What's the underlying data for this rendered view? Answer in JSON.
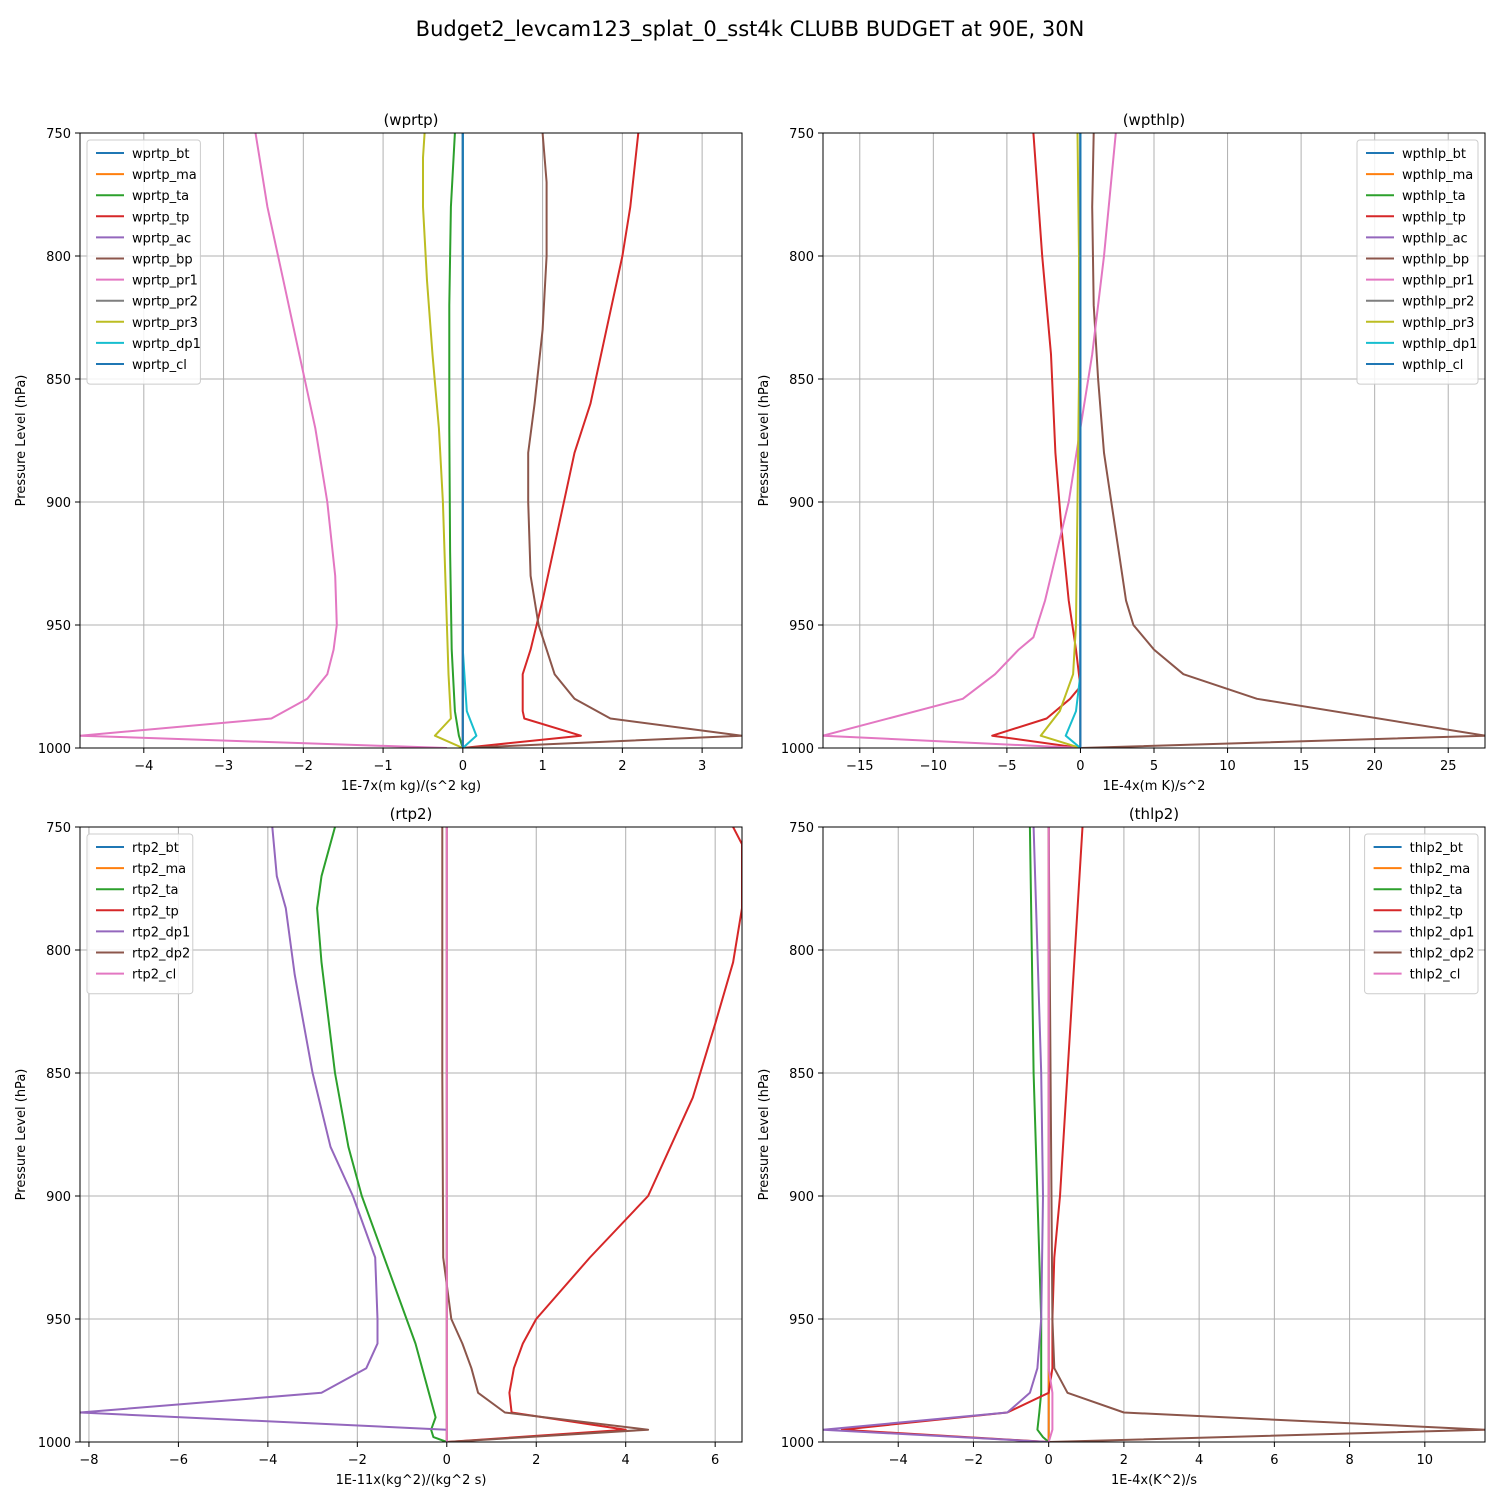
{
  "figure": {
    "suptitle": "Budget2_levcam123_splat_0_sst4k CLUBB BUDGET at 90E, 30N"
  },
  "colors": {
    "C0": "#1f77b4",
    "C1": "#ff7f0e",
    "C2": "#2ca02c",
    "C3": "#d62728",
    "C4": "#9467bd",
    "C5": "#8c564b",
    "C6": "#e377c2",
    "C7": "#7f7f7f",
    "C8": "#bcbd22",
    "C9": "#17becf",
    "grid": "#b0b0b0",
    "axis": "#000000"
  },
  "chart_data": [
    {
      "type": "line",
      "title": "(wprtp)",
      "xlabel": "1E-7x(m kg)/(s^2 kg)",
      "ylabel": "Pressure Level (hPa)",
      "xlim": [
        -4.8,
        3.5
      ],
      "ylim": [
        1000,
        750
      ],
      "xticks": [
        -4,
        -3,
        -2,
        -1,
        0,
        1,
        2,
        3
      ],
      "xtick_labels": [
        "−4",
        "−3",
        "−2",
        "−1",
        "0",
        "1",
        "2",
        "3"
      ],
      "yticks": [
        750,
        800,
        850,
        900,
        950,
        1000
      ],
      "ytick_labels": [
        "750",
        "800",
        "850",
        "900",
        "950",
        "1000"
      ],
      "grid": true,
      "legend_position": "upper-left",
      "series": [
        {
          "name": "wprtp_bt",
          "color": "#1f77b4",
          "x": [
            0,
            0
          ],
          "y": [
            750,
            1000
          ]
        },
        {
          "name": "wprtp_ma",
          "color": "#ff7f0e",
          "x": [
            0,
            0
          ],
          "y": [
            750,
            1000
          ]
        },
        {
          "name": "wprtp_ta",
          "color": "#2ca02c",
          "x": [
            -0.1,
            -0.15,
            -0.17,
            -0.17,
            -0.16,
            -0.14,
            -0.1,
            -0.05,
            0
          ],
          "y": [
            750,
            780,
            820,
            870,
            920,
            960,
            985,
            995,
            1000
          ]
        },
        {
          "name": "wprtp_tp",
          "color": "#d62728",
          "x": [
            2.2,
            2.1,
            2.0,
            1.8,
            1.6,
            1.4,
            1.2,
            1.0,
            0.85,
            0.75,
            0.75,
            0.77,
            1.48,
            0
          ],
          "y": [
            750,
            780,
            800,
            830,
            860,
            880,
            910,
            940,
            960,
            970,
            985,
            988,
            995,
            1000
          ]
        },
        {
          "name": "wprtp_ac",
          "color": "#9467bd",
          "x": [
            0,
            0
          ],
          "y": [
            750,
            1000
          ]
        },
        {
          "name": "wprtp_bp",
          "color": "#8c564b",
          "x": [
            1.0,
            1.05,
            1.05,
            1.0,
            0.9,
            0.82,
            0.82,
            0.85,
            0.95,
            1.05,
            1.15,
            1.4,
            1.85,
            3.5,
            0
          ],
          "y": [
            750,
            770,
            800,
            830,
            860,
            880,
            900,
            930,
            950,
            960,
            970,
            980,
            988,
            995,
            1000
          ]
        },
        {
          "name": "wprtp_pr1",
          "color": "#e377c2",
          "x": [
            -2.6,
            -2.55,
            -2.45,
            -2.25,
            -2.05,
            -1.85,
            -1.7,
            -1.6,
            -1.58,
            -1.62,
            -1.7,
            -1.95,
            -2.4,
            -4.8,
            -0.2
          ],
          "y": [
            750,
            760,
            780,
            810,
            840,
            870,
            900,
            930,
            950,
            960,
            970,
            980,
            988,
            995,
            1000
          ]
        },
        {
          "name": "wprtp_pr2",
          "color": "#7f7f7f",
          "x": [
            0,
            0
          ],
          "y": [
            750,
            1000
          ]
        },
        {
          "name": "wprtp_pr3",
          "color": "#bcbd22",
          "x": [
            -0.48,
            -0.5,
            -0.5,
            -0.45,
            -0.38,
            -0.3,
            -0.25,
            -0.22,
            -0.2,
            -0.18,
            -0.15,
            -0.35,
            0
          ],
          "y": [
            750,
            760,
            780,
            810,
            840,
            870,
            900,
            930,
            950,
            970,
            988,
            995,
            1000
          ]
        },
        {
          "name": "wprtp_dp1",
          "color": "#17becf",
          "x": [
            0,
            0,
            0.02,
            0.05,
            0.17,
            0
          ],
          "y": [
            750,
            960,
            970,
            985,
            995,
            1000
          ]
        },
        {
          "name": "wprtp_cl",
          "color": "#1f77b4",
          "x": [
            0,
            0
          ],
          "y": [
            750,
            1000
          ]
        }
      ]
    },
    {
      "type": "line",
      "title": "(wpthlp)",
      "xlabel": "1E-4x(m K)/s^2",
      "ylabel": "Pressure Level (hPa)",
      "xlim": [
        -17.5,
        27.5
      ],
      "ylim": [
        1000,
        750
      ],
      "xticks": [
        -15,
        -10,
        -5,
        0,
        5,
        10,
        15,
        20,
        25
      ],
      "xtick_labels": [
        "−15",
        "−10",
        "−5",
        "0",
        "5",
        "10",
        "15",
        "20",
        "25"
      ],
      "yticks": [
        750,
        800,
        850,
        900,
        950,
        1000
      ],
      "ytick_labels": [
        "750",
        "800",
        "850",
        "900",
        "950",
        "1000"
      ],
      "grid": true,
      "legend_position": "upper-right",
      "series": [
        {
          "name": "wpthlp_bt",
          "color": "#1f77b4",
          "x": [
            0,
            0
          ],
          "y": [
            750,
            1000
          ]
        },
        {
          "name": "wpthlp_ma",
          "color": "#ff7f0e",
          "x": [
            0,
            0
          ],
          "y": [
            750,
            1000
          ]
        },
        {
          "name": "wpthlp_ta",
          "color": "#2ca02c",
          "x": [
            0,
            0
          ],
          "y": [
            750,
            1000
          ]
        },
        {
          "name": "wpthlp_tp",
          "color": "#d62728",
          "x": [
            -3.2,
            -2.6,
            -2.0,
            -1.7,
            -1.3,
            -0.8,
            -0.3,
            0,
            -0.7,
            -2.3,
            -6.0,
            0
          ],
          "y": [
            750,
            800,
            840,
            880,
            910,
            940,
            960,
            975,
            980,
            988,
            995,
            1000
          ]
        },
        {
          "name": "wpthlp_ac",
          "color": "#9467bd",
          "x": [
            0,
            0
          ],
          "y": [
            750,
            1000
          ]
        },
        {
          "name": "wpthlp_bp",
          "color": "#8c564b",
          "x": [
            0.9,
            0.8,
            0.9,
            1.2,
            1.6,
            2.1,
            2.6,
            3.1,
            3.6,
            5.0,
            7.0,
            12.0,
            27.5,
            0
          ],
          "y": [
            750,
            780,
            820,
            850,
            880,
            900,
            920,
            940,
            950,
            960,
            970,
            980,
            995,
            1000
          ]
        },
        {
          "name": "wpthlp_pr1",
          "color": "#e377c2",
          "x": [
            2.4,
            1.6,
            0.8,
            0.0,
            -0.8,
            -1.6,
            -2.4,
            -3.2,
            -4.2,
            -5.8,
            -8.0,
            -17.5,
            0
          ],
          "y": [
            750,
            800,
            840,
            870,
            900,
            920,
            940,
            955,
            960,
            970,
            980,
            995,
            1000
          ]
        },
        {
          "name": "wpthlp_pr2",
          "color": "#7f7f7f",
          "x": [
            0,
            0
          ],
          "y": [
            750,
            1000
          ]
        },
        {
          "name": "wpthlp_pr3",
          "color": "#bcbd22",
          "x": [
            -0.2,
            -0.1,
            -0.1,
            -0.2,
            -0.3,
            -0.5,
            -1.4,
            -2.7,
            0
          ],
          "y": [
            750,
            800,
            850,
            900,
            950,
            970,
            985,
            995,
            1000
          ]
        },
        {
          "name": "wpthlp_dp1",
          "color": "#17becf",
          "x": [
            0,
            0,
            -0.3,
            -1.0,
            0
          ],
          "y": [
            750,
            970,
            985,
            995,
            1000
          ]
        },
        {
          "name": "wpthlp_cl",
          "color": "#1f77b4",
          "x": [
            0,
            0
          ],
          "y": [
            750,
            1000
          ]
        }
      ]
    },
    {
      "type": "line",
      "title": "(rtp2)",
      "xlabel": "1E-11x(kg^2)/(kg^2 s)",
      "ylabel": "Pressure Level (hPa)",
      "xlim": [
        -8.2,
        6.6
      ],
      "ylim": [
        1000,
        750
      ],
      "xticks": [
        -8,
        -6,
        -4,
        -2,
        0,
        2,
        4,
        6
      ],
      "xtick_labels": [
        "−8",
        "−6",
        "−4",
        "−2",
        "0",
        "2",
        "4",
        "6"
      ],
      "yticks": [
        750,
        800,
        850,
        900,
        950,
        1000
      ],
      "ytick_labels": [
        "750",
        "800",
        "850",
        "900",
        "950",
        "1000"
      ],
      "grid": true,
      "legend_position": "upper-left",
      "series": [
        {
          "name": "rtp2_bt",
          "color": "#1f77b4",
          "x": [
            0,
            0
          ],
          "y": [
            750,
            1000
          ]
        },
        {
          "name": "rtp2_ma",
          "color": "#ff7f0e",
          "x": [
            0,
            0
          ],
          "y": [
            750,
            1000
          ]
        },
        {
          "name": "rtp2_ta",
          "color": "#2ca02c",
          "x": [
            -2.5,
            -2.8,
            -2.9,
            -2.8,
            -2.5,
            -2.2,
            -1.9,
            -1.5,
            -1.1,
            -0.7,
            -0.4,
            -0.25,
            -0.35,
            -0.3,
            0
          ],
          "y": [
            750,
            770,
            783,
            805,
            850,
            880,
            900,
            920,
            940,
            960,
            980,
            990,
            995,
            998,
            1000
          ]
        },
        {
          "name": "rtp2_tp",
          "color": "#d62728",
          "x": [
            6.4,
            6.6,
            6.6,
            6.4,
            6.0,
            5.5,
            4.5,
            3.2,
            2.0,
            1.7,
            1.5,
            1.4,
            1.45,
            4.0,
            0
          ],
          "y": [
            750,
            757,
            783,
            805,
            830,
            860,
            900,
            925,
            950,
            960,
            970,
            980,
            988,
            995,
            1000
          ]
        },
        {
          "name": "rtp2_dp1",
          "color": "#9467bd",
          "x": [
            -3.9,
            -3.8,
            -3.6,
            -3.4,
            -3.0,
            -2.6,
            -2.1,
            -1.6,
            -1.55,
            -1.55,
            -1.8,
            -2.8,
            -8.2,
            0
          ],
          "y": [
            750,
            770,
            783,
            810,
            850,
            880,
            900,
            925,
            950,
            960,
            970,
            980,
            988,
            995
          ]
        },
        {
          "name": "rtp2_dp2",
          "color": "#8c564b",
          "x": [
            -0.1,
            -0.1,
            -0.08,
            0.1,
            0.35,
            0.55,
            0.7,
            1.3,
            4.5,
            0
          ],
          "y": [
            750,
            850,
            925,
            950,
            960,
            970,
            980,
            988,
            995,
            1000
          ]
        },
        {
          "name": "rtp2_cl",
          "color": "#e377c2",
          "x": [
            0,
            0
          ],
          "y": [
            750,
            1000
          ]
        }
      ]
    },
    {
      "type": "line",
      "title": "(thlp2)",
      "xlabel": "1E-4x(K^2)/s",
      "ylabel": "Pressure Level (hPa)",
      "xlim": [
        -6.0,
        11.6
      ],
      "ylim": [
        1000,
        750
      ],
      "xticks": [
        -4,
        -2,
        0,
        2,
        4,
        6,
        8,
        10
      ],
      "xtick_labels": [
        "−4",
        "−2",
        "0",
        "2",
        "4",
        "6",
        "8",
        "10"
      ],
      "yticks": [
        750,
        800,
        850,
        900,
        950,
        1000
      ],
      "ytick_labels": [
        "750",
        "800",
        "850",
        "900",
        "950",
        "1000"
      ],
      "grid": true,
      "legend_position": "upper-right",
      "series": [
        {
          "name": "thlp2_bt",
          "color": "#1f77b4",
          "x": [
            0,
            0
          ],
          "y": [
            750,
            1000
          ]
        },
        {
          "name": "thlp2_ma",
          "color": "#ff7f0e",
          "x": [
            0,
            0
          ],
          "y": [
            750,
            1000
          ]
        },
        {
          "name": "thlp2_ta",
          "color": "#2ca02c",
          "x": [
            -0.5,
            -0.45,
            -0.4,
            -0.3,
            -0.2,
            -0.2,
            -0.2,
            -0.25,
            -0.3,
            -0.15,
            0
          ],
          "y": [
            750,
            800,
            850,
            900,
            950,
            970,
            980,
            988,
            995,
            998,
            1000
          ]
        },
        {
          "name": "thlp2_tp",
          "color": "#d62728",
          "x": [
            0.9,
            0.7,
            0.5,
            0.3,
            0.15,
            0.1,
            0.1,
            0.0,
            -1.1,
            -5.5,
            0
          ],
          "y": [
            750,
            800,
            850,
            900,
            925,
            950,
            970,
            980,
            988,
            995,
            1000
          ]
        },
        {
          "name": "thlp2_dp1",
          "color": "#9467bd",
          "x": [
            -0.4,
            -0.3,
            -0.2,
            -0.15,
            -0.2,
            -0.3,
            -0.5,
            -1.1,
            -6.0,
            0
          ],
          "y": [
            750,
            800,
            850,
            900,
            950,
            970,
            980,
            988,
            995,
            1000
          ]
        },
        {
          "name": "thlp2_dp2",
          "color": "#8c564b",
          "x": [
            0,
            0.1,
            0.15,
            0.5,
            2.0,
            11.6,
            0
          ],
          "y": [
            750,
            950,
            970,
            980,
            988,
            995,
            1000
          ]
        },
        {
          "name": "thlp2_cl",
          "color": "#e377c2",
          "x": [
            0,
            0,
            0.1,
            0.1,
            0
          ],
          "y": [
            750,
            970,
            980,
            995,
            1000
          ]
        }
      ]
    }
  ]
}
